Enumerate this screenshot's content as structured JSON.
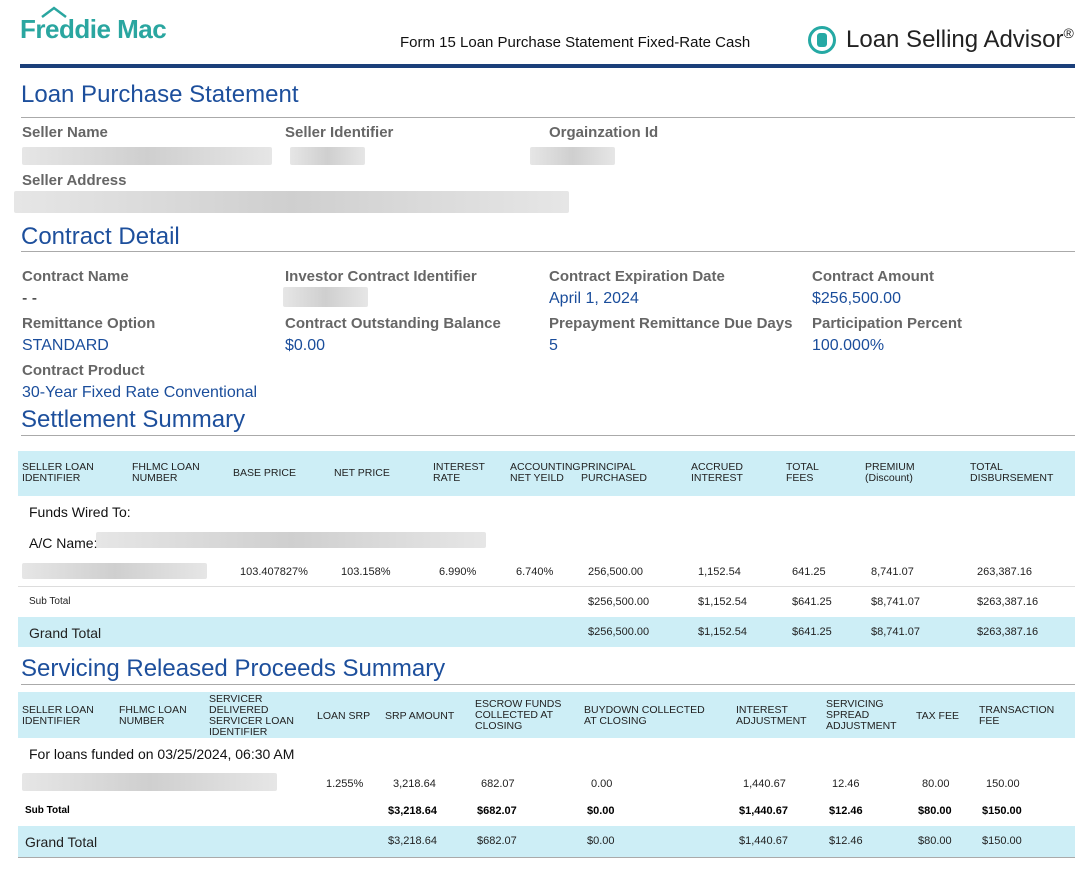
{
  "header": {
    "logo_text": "Freddie Mac",
    "form_title": "Form 15 Loan Purchase Statement Fixed-Rate Cash",
    "product_name": "Loan Selling Advisor",
    "product_mark": "®"
  },
  "loan_purchase": {
    "title": "Loan Purchase Statement",
    "seller_name_label": "Seller Name",
    "seller_identifier_label": "Seller Identifier",
    "organization_id_label": "Orgainzation Id",
    "seller_address_label": "Seller Address"
  },
  "contract": {
    "title": "Contract Detail",
    "contract_name_label": "Contract Name",
    "contract_name_value": "- -",
    "investor_contract_identifier_label": "Investor Contract Identifier",
    "contract_expiration_date_label": "Contract Expiration Date",
    "contract_expiration_date_value": "April 1, 2024",
    "contract_amount_label": "Contract Amount",
    "contract_amount_value": "$256,500.00",
    "remittance_option_label": "Remittance Option",
    "remittance_option_value": "STANDARD",
    "outstanding_balance_label": "Contract Outstanding Balance",
    "outstanding_balance_value": "$0.00",
    "prepayment_due_days_label": "Prepayment Remittance Due Days",
    "prepayment_due_days_value": "5",
    "participation_percent_label": "Participation Percent",
    "participation_percent_value": "100.000%",
    "contract_product_label": "Contract Product",
    "contract_product_value": "30-Year Fixed Rate Conventional"
  },
  "settlement": {
    "title": "Settlement Summary",
    "headers": {
      "seller_loan_id": [
        "SELLER LOAN",
        "IDENTIFIER"
      ],
      "fhlmc_loan_number": [
        "FHLMC LOAN",
        "NUMBER"
      ],
      "base_price": [
        "BASE PRICE"
      ],
      "net_price": [
        "NET PRICE"
      ],
      "interest_rate": [
        "INTEREST",
        "RATE"
      ],
      "accounting_net_yield": [
        "ACCOUNTING",
        "NET YEILD"
      ],
      "principal_purchased": [
        "PRINCIPAL",
        "PURCHASED"
      ],
      "accrued_interest": [
        "ACCRUED",
        "INTEREST"
      ],
      "total_fees": [
        "TOTAL",
        "FEES"
      ],
      "premium": [
        "PREMIUM",
        "(Discount)"
      ],
      "total_disbursement": [
        "TOTAL",
        "DISBURSEMENT"
      ]
    },
    "funds_wired_to": "Funds Wired To:",
    "ac_name_label": "A/C Name:",
    "row": {
      "base_price": "103.407827%",
      "net_price": "103.158%",
      "interest_rate": "6.990%",
      "accounting_net_yield": "6.740%",
      "principal_purchased": "256,500.00",
      "accrued_interest": "1,152.54",
      "total_fees": "641.25",
      "premium": "8,741.07",
      "total_disbursement": "263,387.16"
    },
    "subtotal": {
      "label": "Sub Total",
      "principal_purchased": "$256,500.00",
      "accrued_interest": "$1,152.54",
      "total_fees": "$641.25",
      "premium": "$8,741.07",
      "total_disbursement": "$263,387.16"
    },
    "grandtotal": {
      "label": "Grand Total",
      "principal_purchased": "$256,500.00",
      "accrued_interest": "$1,152.54",
      "total_fees": "$641.25",
      "premium": "$8,741.07",
      "total_disbursement": "$263,387.16"
    }
  },
  "servicing": {
    "title": "Servicing Released Proceeds Summary",
    "headers": {
      "seller_loan_id": [
        "SELLER LOAN",
        "IDENTIFIER"
      ],
      "fhlmc_loan_number": [
        "FHLMC LOAN",
        "NUMBER"
      ],
      "servicer_loan_id": [
        "SERVICER",
        "DELIVERED",
        "SERVICER LOAN",
        "IDENTIFIER"
      ],
      "loan_srp": [
        "LOAN SRP"
      ],
      "srp_amount": [
        "SRP AMOUNT"
      ],
      "escrow_funds": [
        "ESCROW FUNDS",
        "COLLECTED AT",
        "CLOSING"
      ],
      "buydown": [
        "BUYDOWN COLLECTED",
        "AT CLOSING"
      ],
      "interest_adjustment": [
        "INTEREST",
        "ADJUSTMENT"
      ],
      "servicing_spread": [
        "SERVICING",
        "SPREAD",
        "ADJUSTMENT"
      ],
      "tax_fee": [
        "TAX FEE"
      ],
      "transaction_fee": [
        "TRANSACTION",
        "FEE"
      ]
    },
    "funded_note": "For loans funded on 03/25/2024, 06:30 AM",
    "row": {
      "loan_srp": "1.255%",
      "srp_amount": "3,218.64",
      "escrow_funds": "682.07",
      "buydown": "0.00",
      "interest_adjustment": "1,440.67",
      "servicing_spread": "12.46",
      "tax_fee": "80.00",
      "transaction_fee": "150.00"
    },
    "subtotal": {
      "label": "Sub Total",
      "srp_amount": "$3,218.64",
      "escrow_funds": "$682.07",
      "buydown": "$0.00",
      "interest_adjustment": "$1,440.67",
      "servicing_spread": "$12.46",
      "tax_fee": "$80.00",
      "transaction_fee": "$150.00"
    },
    "grandtotal": {
      "label": "Grand Total",
      "srp_amount": "$3,218.64",
      "escrow_funds": "$682.07",
      "buydown": "$0.00",
      "interest_adjustment": "$1,440.67",
      "servicing_spread": "$12.46",
      "tax_fee": "$80.00",
      "transaction_fee": "$150.00"
    }
  }
}
